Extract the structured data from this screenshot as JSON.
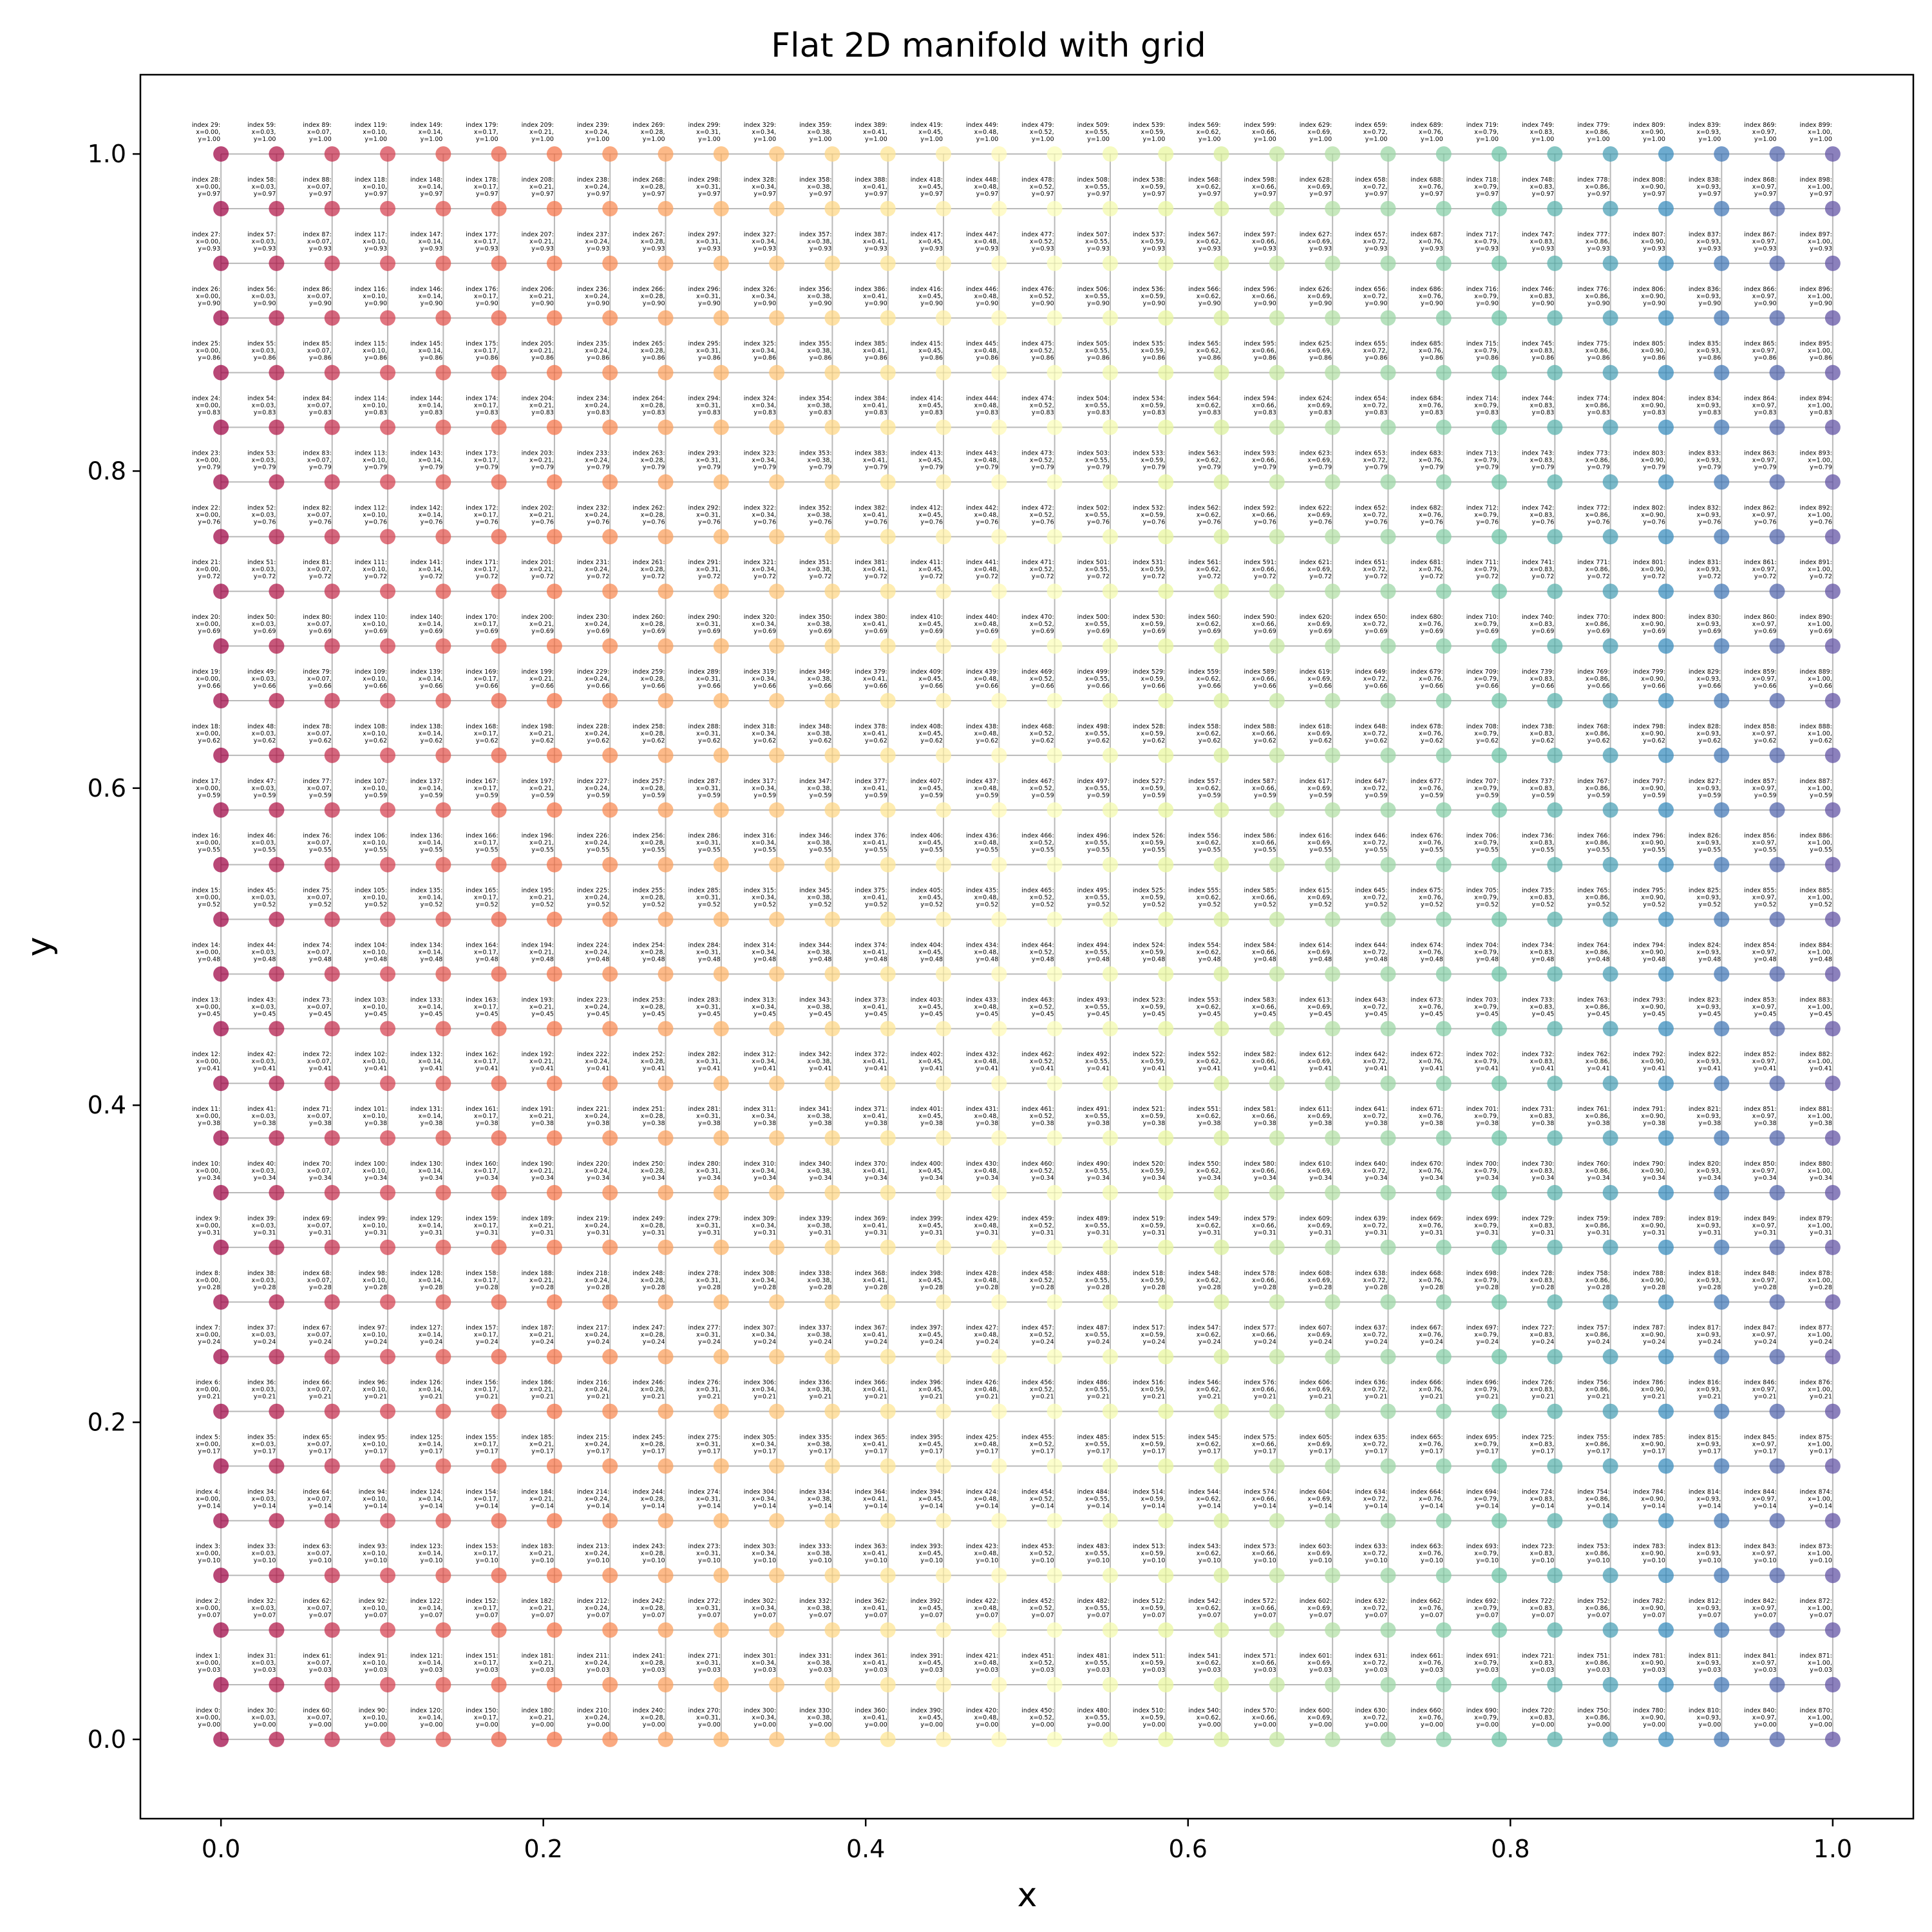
{
  "chart_data": {
    "type": "scatter",
    "title": "Flat 2D manifold with grid",
    "xlabel": "x",
    "ylabel": "y",
    "xlim": [
      -0.05,
      1.05
    ],
    "ylim": [
      -0.05,
      1.05
    ],
    "xticks": [
      "0.0",
      "0.2",
      "0.4",
      "0.6",
      "0.8",
      "1.0"
    ],
    "yticks": [
      "0.0",
      "0.2",
      "0.4",
      "0.6",
      "0.8",
      "1.0"
    ],
    "grid_size": 30,
    "x_values": [
      0.0,
      0.03,
      0.07,
      0.1,
      0.14,
      0.17,
      0.21,
      0.24,
      0.28,
      0.31,
      0.34,
      0.38,
      0.41,
      0.45,
      0.48,
      0.52,
      0.55,
      0.59,
      0.62,
      0.66,
      0.69,
      0.72,
      0.76,
      0.79,
      0.83,
      0.86,
      0.9,
      0.93,
      0.97,
      1.0
    ],
    "y_values": [
      0.0,
      0.03,
      0.07,
      0.1,
      0.14,
      0.17,
      0.21,
      0.24,
      0.28,
      0.31,
      0.34,
      0.38,
      0.41,
      0.45,
      0.48,
      0.52,
      0.55,
      0.59,
      0.62,
      0.66,
      0.69,
      0.72,
      0.76,
      0.79,
      0.83,
      0.86,
      0.9,
      0.93,
      0.97,
      1.0
    ],
    "point_label_format": "index {i}:|x={x},|y={y}",
    "index_order": "column-major by x (index = x_column * 30 + y_row)",
    "colormap": "Spectral (red at x=0 to purple-blue at x=1)",
    "colormap_stops": [
      "#9e0142",
      "#d53e4f",
      "#f46d43",
      "#fdae61",
      "#fee08b",
      "#ffffbf",
      "#e6f598",
      "#abdda4",
      "#66c2a5",
      "#3288bd",
      "#5e4fa2"
    ],
    "grid_lines": true,
    "legend": "none"
  }
}
